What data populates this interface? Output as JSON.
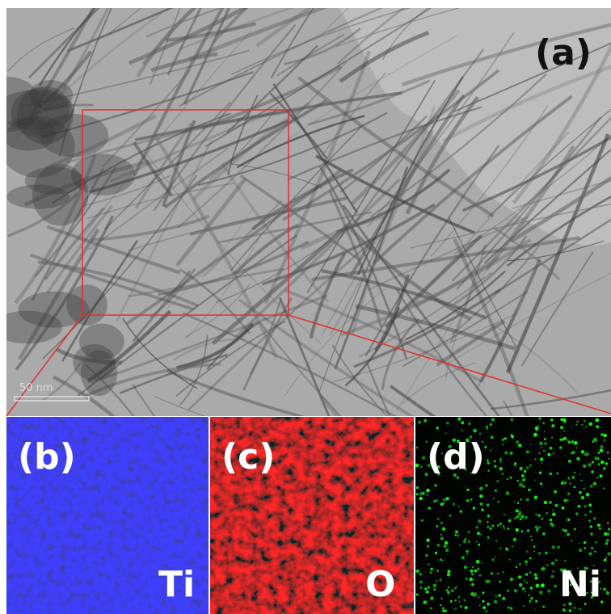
{
  "panels": {
    "a": {
      "label": "(a)",
      "scale_bar": "50 nm"
    },
    "b": {
      "label": "(b)",
      "element": "Ti"
    },
    "c": {
      "label": "(c)",
      "element": "O"
    },
    "d": {
      "label": "(d)",
      "element": "Ni"
    }
  }
}
